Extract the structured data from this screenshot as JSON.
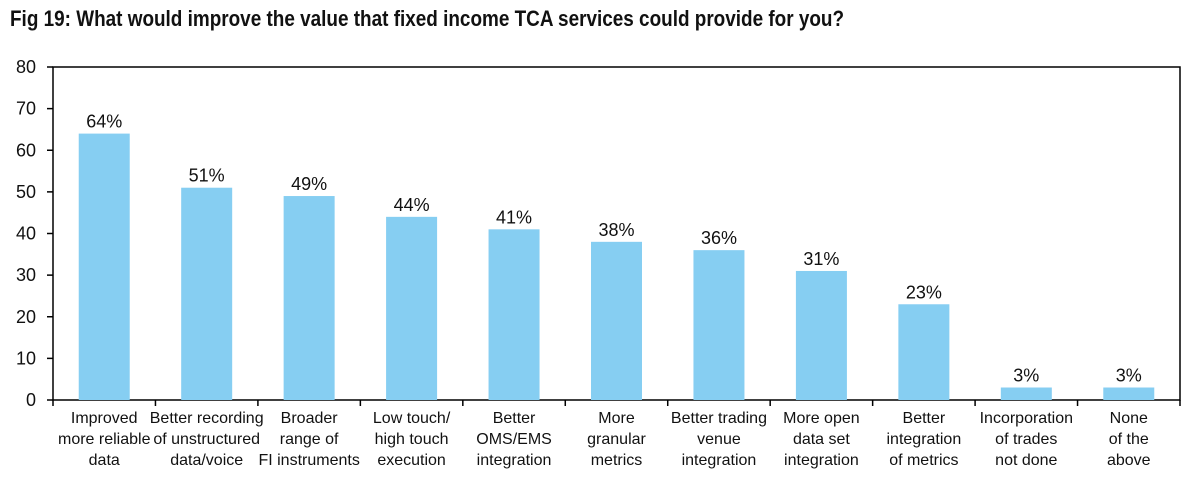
{
  "chart_data": {
    "type": "bar",
    "title": "Fig 19: What would improve the value that fixed income TCA services could provide for you?",
    "xlabel": "",
    "ylabel": "",
    "ylim": [
      0,
      80
    ],
    "yticks": [
      0,
      10,
      20,
      30,
      40,
      50,
      60,
      70,
      80
    ],
    "grid": false,
    "bar_color": "#86cef2",
    "categories": [
      "Improved more reliable data",
      "Better recording of unstructured data/voice",
      "Broader range of FI instruments",
      "Low touch/ high touch execution",
      "Better OMS/EMS integration",
      "More granular metrics",
      "Better trading venue integration",
      "More open data set integration",
      "Better integration of metrics",
      "Incorporation of trades not done",
      "None of the above"
    ],
    "category_lines": [
      [
        "Improved",
        "more reliable",
        "data"
      ],
      [
        "Better recording",
        "of unstructured",
        "data/voice"
      ],
      [
        "Broader",
        "range of",
        "FI instruments"
      ],
      [
        "Low touch/",
        "high touch",
        "execution"
      ],
      [
        "Better",
        "OMS/EMS",
        "integration"
      ],
      [
        "More",
        "granular",
        "metrics"
      ],
      [
        "Better trading",
        "venue",
        "integration"
      ],
      [
        "More open",
        "data set",
        "integration"
      ],
      [
        "Better",
        "integration",
        "of metrics"
      ],
      [
        "Incorporation",
        "of trades",
        "not done"
      ],
      [
        "None",
        "of the",
        "above"
      ]
    ],
    "values": [
      64,
      51,
      49,
      44,
      41,
      38,
      36,
      31,
      23,
      3,
      3
    ],
    "data_labels": [
      "64%",
      "51%",
      "49%",
      "44%",
      "41%",
      "38%",
      "36%",
      "31%",
      "23%",
      "3%",
      "3%"
    ]
  }
}
